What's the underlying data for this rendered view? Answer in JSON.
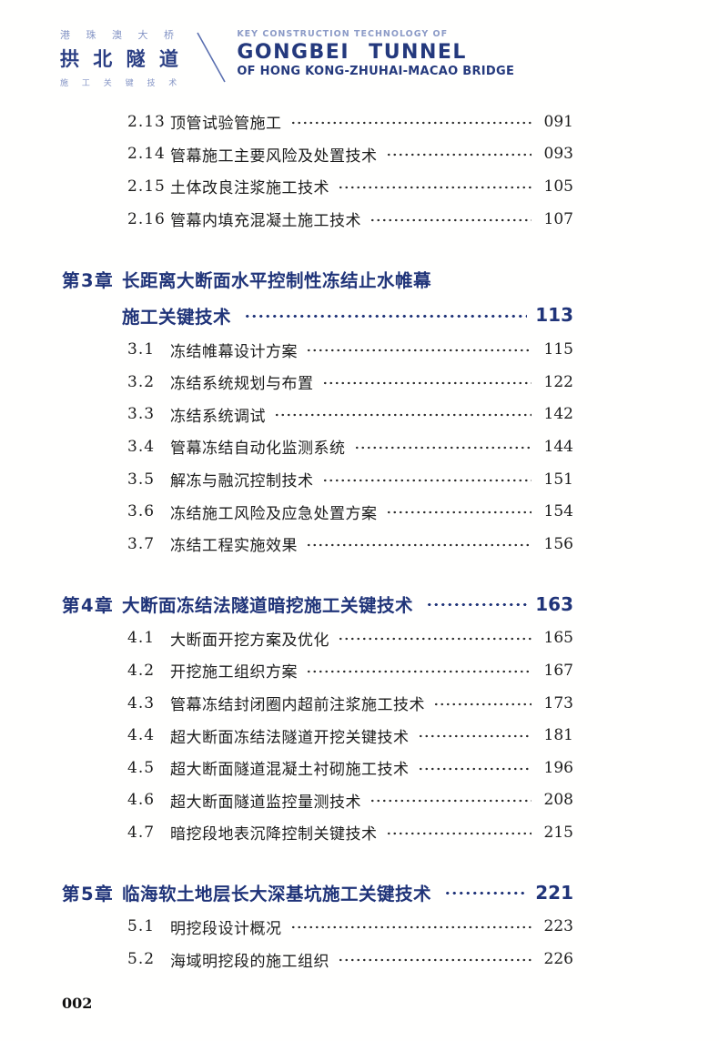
{
  "header": {
    "cn_kicker": "港 珠 澳 大 桥",
    "cn_title": "拱 北 隧 道",
    "cn_sub": "施 工 关 键 技 术",
    "en_kicker": "KEY CONSTRUCTION TECHNOLOGY OF",
    "en_title": "GONGBEI TUNNEL",
    "en_sub": "OF HONG KONG-ZHUHAI-MACAO BRIDGE"
  },
  "toc": {
    "leading_sections": [
      {
        "num": "2.13",
        "title": "顶管试验管施工",
        "page": "091"
      },
      {
        "num": "2.14",
        "title": "管幕施工主要风险及处置技术",
        "page": "093"
      },
      {
        "num": "2.15",
        "title": "土体改良注浆施工技术",
        "page": "105"
      },
      {
        "num": "2.16",
        "title": "管幕内填充混凝土施工技术",
        "page": "107"
      }
    ],
    "chapters": [
      {
        "label": "第3章",
        "title_lines": [
          "长距离大断面水平控制性冻结止水帷幕",
          "施工关键技术"
        ],
        "page": "113",
        "sections": [
          {
            "num": "3.1",
            "title": "冻结帷幕设计方案",
            "page": "115"
          },
          {
            "num": "3.2",
            "title": "冻结系统规划与布置",
            "page": "122"
          },
          {
            "num": "3.3",
            "title": "冻结系统调试",
            "page": "142"
          },
          {
            "num": "3.4",
            "title": "管幕冻结自动化监测系统",
            "page": "144"
          },
          {
            "num": "3.5",
            "title": "解冻与融沉控制技术",
            "page": "151"
          },
          {
            "num": "3.6",
            "title": "冻结施工风险及应急处置方案",
            "page": "154"
          },
          {
            "num": "3.7",
            "title": "冻结工程实施效果",
            "page": "156"
          }
        ]
      },
      {
        "label": "第4章",
        "title_lines": [
          "大断面冻结法隧道暗挖施工关键技术"
        ],
        "page": "163",
        "sections": [
          {
            "num": "4.1",
            "title": "大断面开挖方案及优化",
            "page": "165"
          },
          {
            "num": "4.2",
            "title": "开挖施工组织方案",
            "page": "167"
          },
          {
            "num": "4.3",
            "title": "管幕冻结封闭圈内超前注浆施工技术",
            "page": "173"
          },
          {
            "num": "4.4",
            "title": "超大断面冻结法隧道开挖关键技术",
            "page": "181"
          },
          {
            "num": "4.5",
            "title": "超大断面隧道混凝土衬砌施工技术",
            "page": "196"
          },
          {
            "num": "4.6",
            "title": "超大断面隧道监控量测技术",
            "page": "208"
          },
          {
            "num": "4.7",
            "title": "暗挖段地表沉降控制关键技术",
            "page": "215"
          }
        ]
      },
      {
        "label": "第5章",
        "title_lines": [
          "临海软土地层长大深基坑施工关键技术"
        ],
        "page": "221",
        "sections": [
          {
            "num": "5.1",
            "title": "明挖段设计概况",
            "page": "223"
          },
          {
            "num": "5.2",
            "title": "海域明挖段的施工组织",
            "page": "226"
          }
        ]
      }
    ]
  },
  "footer": {
    "page_number": "002"
  },
  "colors": {
    "chapter_navy": "#203479",
    "logo_navy": "#24397d",
    "logo_light_blue": "#8494c5",
    "body_ink": "#1c1c1c"
  }
}
